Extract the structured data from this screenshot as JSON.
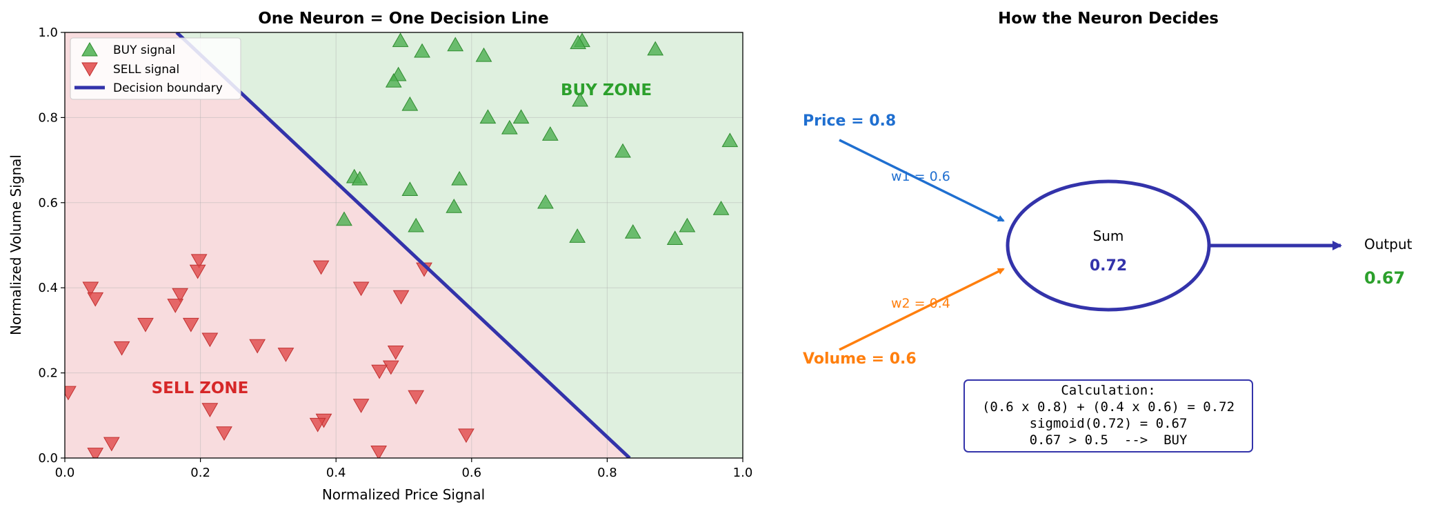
{
  "chart_data": [
    {
      "type": "scatter",
      "title": "One Neuron = One Decision Line",
      "xlabel": "Normalized Price Signal",
      "ylabel": "Normalized Volume Signal",
      "xlim": [
        0.0,
        1.0
      ],
      "ylim": [
        0.0,
        1.0
      ],
      "xticks": [
        "0.0",
        "0.2",
        "0.4",
        "0.6",
        "0.8",
        "1.0"
      ],
      "yticks": [
        "0.0",
        "0.2",
        "0.4",
        "0.6",
        "0.8",
        "1.0"
      ],
      "grid": true,
      "legend_position": "top-left",
      "legend": [
        "BUY signal",
        "SELL signal",
        "Decision boundary"
      ],
      "zones": {
        "buy_label": "BUY ZONE",
        "sell_label": "SELL ZONE",
        "buy_fill": "#dff0df",
        "sell_fill": "#f8dcde"
      },
      "boundary": {
        "points": [
          [
            0.165,
            1.0
          ],
          [
            0.833,
            0.0
          ]
        ],
        "color": "#3333aa"
      },
      "series": [
        {
          "name": "BUY signal",
          "marker": "triangle-up",
          "color": "#4caf50",
          "points": [
            [
              0.495,
              0.98
            ],
            [
              0.763,
              0.98
            ],
            [
              0.576,
              0.97
            ],
            [
              0.757,
              0.975
            ],
            [
              0.527,
              0.955
            ],
            [
              0.618,
              0.945
            ],
            [
              0.871,
              0.96
            ],
            [
              0.492,
              0.9
            ],
            [
              0.485,
              0.885
            ],
            [
              0.509,
              0.83
            ],
            [
              0.76,
              0.84
            ],
            [
              0.624,
              0.8
            ],
            [
              0.673,
              0.8
            ],
            [
              0.656,
              0.775
            ],
            [
              0.716,
              0.76
            ],
            [
              0.823,
              0.72
            ],
            [
              0.981,
              0.745
            ],
            [
              0.427,
              0.66
            ],
            [
              0.435,
              0.655
            ],
            [
              0.582,
              0.655
            ],
            [
              0.509,
              0.63
            ],
            [
              0.709,
              0.6
            ],
            [
              0.574,
              0.59
            ],
            [
              0.968,
              0.585
            ],
            [
              0.412,
              0.56
            ],
            [
              0.518,
              0.545
            ],
            [
              0.918,
              0.545
            ],
            [
              0.838,
              0.53
            ],
            [
              0.756,
              0.52
            ],
            [
              0.9,
              0.515
            ]
          ]
        },
        {
          "name": "SELL signal",
          "marker": "triangle-down",
          "color": "#e04848",
          "points": [
            [
              0.198,
              0.465
            ],
            [
              0.378,
              0.45
            ],
            [
              0.53,
              0.445
            ],
            [
              0.196,
              0.44
            ],
            [
              0.038,
              0.4
            ],
            [
              0.437,
              0.4
            ],
            [
              0.17,
              0.385
            ],
            [
              0.045,
              0.375
            ],
            [
              0.496,
              0.38
            ],
            [
              0.163,
              0.36
            ],
            [
              0.119,
              0.315
            ],
            [
              0.186,
              0.315
            ],
            [
              0.214,
              0.28
            ],
            [
              0.084,
              0.26
            ],
            [
              0.284,
              0.265
            ],
            [
              0.326,
              0.245
            ],
            [
              0.488,
              0.25
            ],
            [
              0.481,
              0.215
            ],
            [
              0.464,
              0.205
            ],
            [
              0.005,
              0.155
            ],
            [
              0.518,
              0.145
            ],
            [
              0.437,
              0.125
            ],
            [
              0.214,
              0.115
            ],
            [
              0.382,
              0.09
            ],
            [
              0.373,
              0.08
            ],
            [
              0.235,
              0.06
            ],
            [
              0.592,
              0.055
            ],
            [
              0.069,
              0.035
            ],
            [
              0.045,
              0.01
            ],
            [
              0.463,
              0.015
            ]
          ]
        }
      ]
    },
    {
      "type": "diagram",
      "title": "How the Neuron Decides",
      "inputs": [
        {
          "label": "Price = 0.8",
          "weight_label": "w1 = 0.6",
          "color": "#1f6fd0"
        },
        {
          "label": "Volume = 0.6",
          "weight_label": "w2 = 0.4",
          "color": "#ff7f0e"
        }
      ],
      "node": {
        "label": "Sum",
        "value": "0.72",
        "color": "#3333aa"
      },
      "output": {
        "label": "Output",
        "value": "0.67",
        "value_color": "#2ca02c"
      },
      "calculation": [
        "Calculation:",
        "(0.6 x 0.8) + (0.4 x 0.6) = 0.72",
        "sigmoid(0.72) = 0.67",
        "0.67 > 0.5  -->  BUY"
      ]
    }
  ]
}
